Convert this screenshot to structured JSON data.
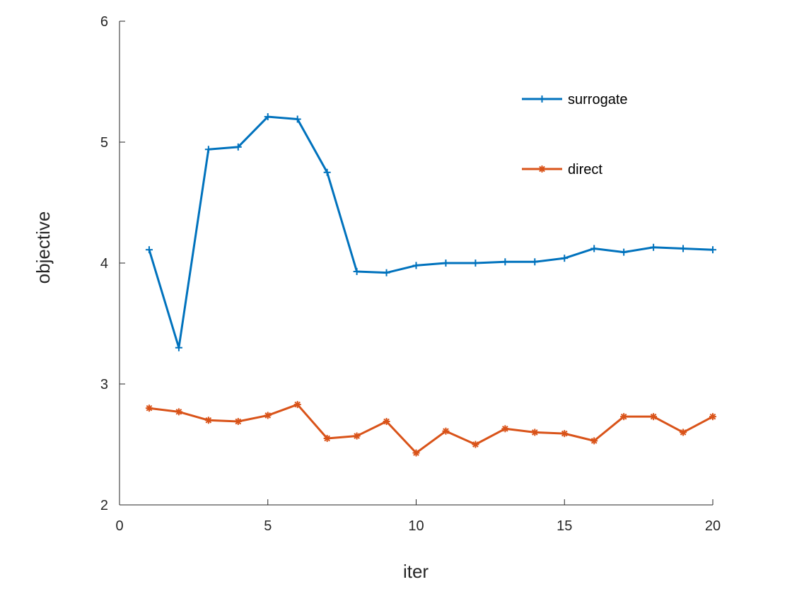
{
  "chart_data": {
    "type": "line",
    "xlabel": "iter",
    "ylabel": "objective",
    "xlim": [
      0,
      20
    ],
    "ylim": [
      2,
      6
    ],
    "xticks": [
      0,
      5,
      10,
      15,
      20
    ],
    "yticks": [
      2,
      3,
      4,
      5,
      6
    ],
    "grid": false,
    "legend": {
      "position": "top-right",
      "box": false
    },
    "x": [
      1,
      2,
      3,
      4,
      5,
      6,
      7,
      8,
      9,
      10,
      11,
      12,
      13,
      14,
      15,
      16,
      17,
      18,
      19,
      20
    ],
    "series": [
      {
        "name": "surrogate",
        "color": "#0072BD",
        "marker": "plus",
        "values": [
          4.11,
          3.3,
          4.94,
          4.96,
          5.21,
          5.19,
          4.75,
          3.93,
          3.92,
          3.98,
          4.0,
          4.0,
          4.01,
          4.01,
          4.04,
          4.12,
          4.09,
          4.13,
          4.12,
          4.11
        ]
      },
      {
        "name": "direct",
        "color": "#D95319",
        "marker": "asterisk",
        "values": [
          2.8,
          2.77,
          2.7,
          2.69,
          2.74,
          2.83,
          2.55,
          2.57,
          2.69,
          2.43,
          2.61,
          2.5,
          2.63,
          2.6,
          2.59,
          2.53,
          2.73,
          2.73,
          2.6,
          2.73
        ]
      }
    ]
  }
}
